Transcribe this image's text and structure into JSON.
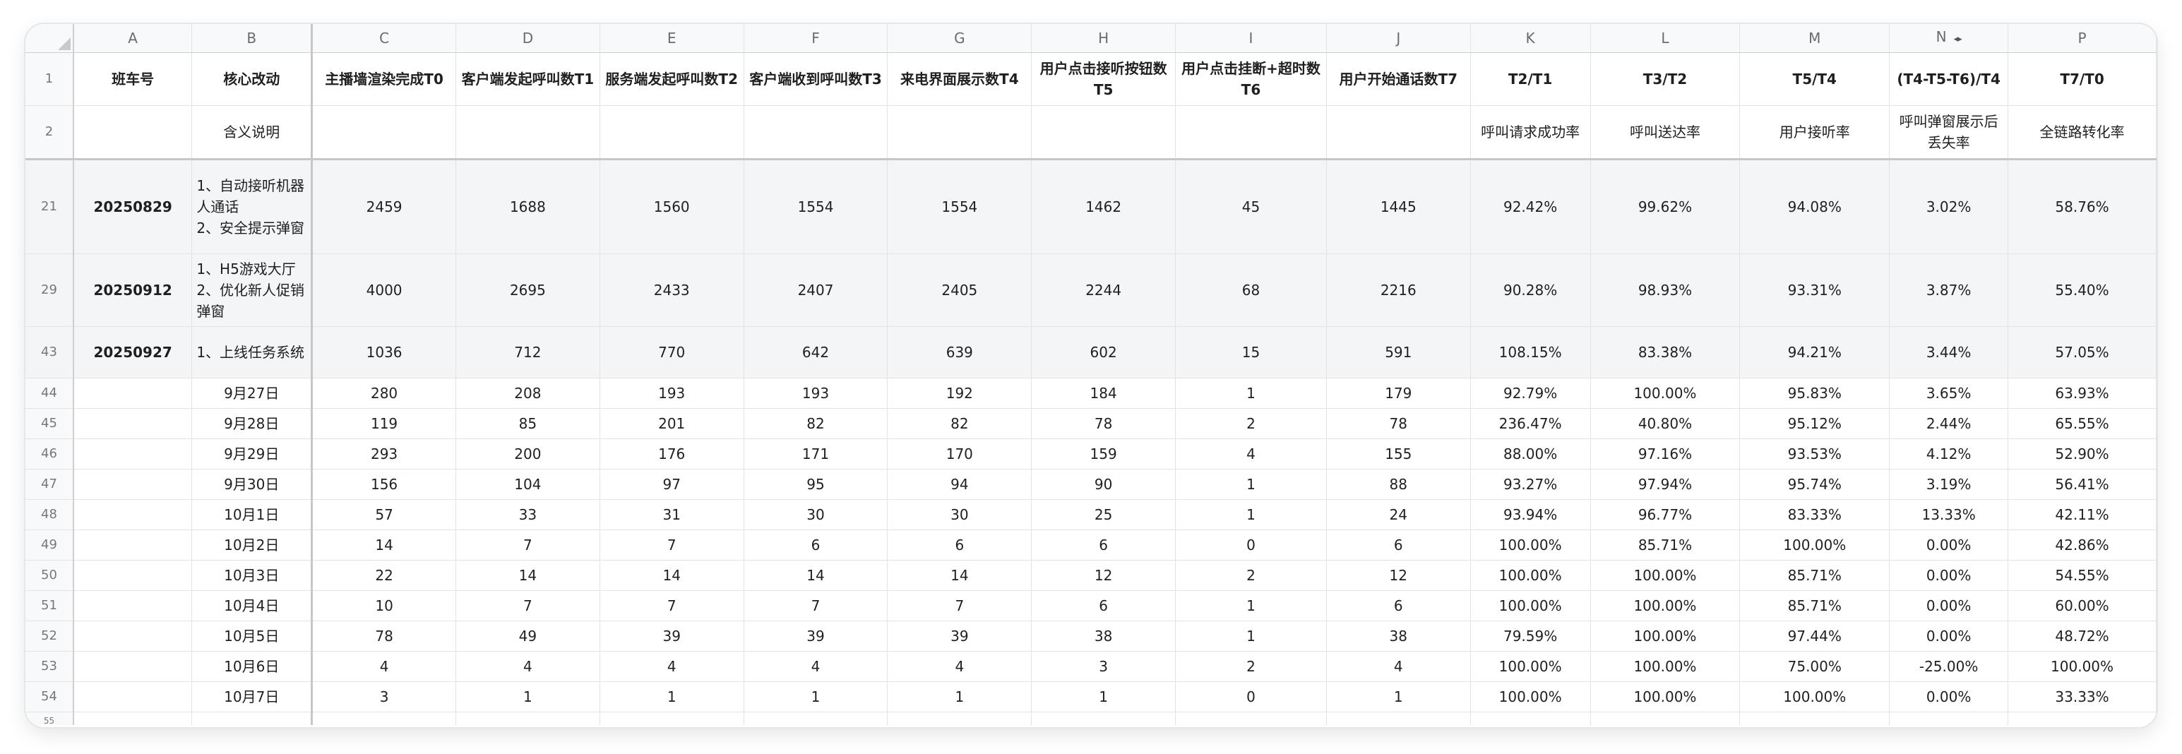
{
  "columns": [
    "A",
    "B",
    "C",
    "D",
    "E",
    "F",
    "G",
    "H",
    "I",
    "J",
    "K",
    "L",
    "M",
    "N",
    "P"
  ],
  "header_row": {
    "row_number": "1",
    "cells": [
      "班车号",
      "核心改动",
      "主播墙渲染完成T0",
      "客户端发起呼叫数T1",
      "服务端发起呼叫数T2",
      "客户端收到呼叫数T3",
      "来电界面展示数T4",
      "用户点击接听按钮数T5",
      "用户点击挂断+超时数T6",
      "用户开始通话数T7",
      "T2/T1",
      "T3/T2",
      "T5/T4",
      "(T4-T5-T6)/T4",
      "T7/T0"
    ]
  },
  "desc_row": {
    "row_number": "2",
    "cells": [
      "",
      "含义说明",
      "",
      "",
      "",
      "",
      "",
      "",
      "",
      "",
      "呼叫请求成功率",
      "呼叫送达率",
      "用户接听率",
      "呼叫弹窗展示后丢失率",
      "全链路转化率"
    ]
  },
  "rows": [
    {
      "row_number": "21",
      "cells": [
        "20250829",
        "1、自动接听机器人通话\n2、安全提示弹窗",
        "2459",
        "1688",
        "1560",
        "1554",
        "1554",
        "1462",
        "45",
        "1445",
        "92.42%",
        "99.62%",
        "94.08%",
        "3.02%",
        "58.76%"
      ]
    },
    {
      "row_number": "29",
      "cells": [
        "20250912",
        "1、H5游戏大厅\n2、优化新人促销弹窗",
        "4000",
        "2695",
        "2433",
        "2407",
        "2405",
        "2244",
        "68",
        "2216",
        "90.28%",
        "98.93%",
        "93.31%",
        "3.87%",
        "55.40%"
      ]
    },
    {
      "row_number": "43",
      "cells": [
        "20250927",
        "1、上线任务系统",
        "1036",
        "712",
        "770",
        "642",
        "639",
        "602",
        "15",
        "591",
        "108.15%",
        "83.38%",
        "94.21%",
        "3.44%",
        "57.05%"
      ]
    },
    {
      "row_number": "44",
      "cells": [
        "",
        "9月27日",
        "280",
        "208",
        "193",
        "193",
        "192",
        "184",
        "1",
        "179",
        "92.79%",
        "100.00%",
        "95.83%",
        "3.65%",
        "63.93%"
      ]
    },
    {
      "row_number": "45",
      "cells": [
        "",
        "9月28日",
        "119",
        "85",
        "201",
        "82",
        "82",
        "78",
        "2",
        "78",
        "236.47%",
        "40.80%",
        "95.12%",
        "2.44%",
        "65.55%"
      ]
    },
    {
      "row_number": "46",
      "cells": [
        "",
        "9月29日",
        "293",
        "200",
        "176",
        "171",
        "170",
        "159",
        "4",
        "155",
        "88.00%",
        "97.16%",
        "93.53%",
        "4.12%",
        "52.90%"
      ]
    },
    {
      "row_number": "47",
      "cells": [
        "",
        "9月30日",
        "156",
        "104",
        "97",
        "95",
        "94",
        "90",
        "1",
        "88",
        "93.27%",
        "97.94%",
        "95.74%",
        "3.19%",
        "56.41%"
      ]
    },
    {
      "row_number": "48",
      "cells": [
        "",
        "10月1日",
        "57",
        "33",
        "31",
        "30",
        "30",
        "25",
        "1",
        "24",
        "93.94%",
        "96.77%",
        "83.33%",
        "13.33%",
        "42.11%"
      ]
    },
    {
      "row_number": "49",
      "cells": [
        "",
        "10月2日",
        "14",
        "7",
        "7",
        "6",
        "6",
        "6",
        "0",
        "6",
        "100.00%",
        "85.71%",
        "100.00%",
        "0.00%",
        "42.86%"
      ]
    },
    {
      "row_number": "50",
      "cells": [
        "",
        "10月3日",
        "22",
        "14",
        "14",
        "14",
        "14",
        "12",
        "2",
        "12",
        "100.00%",
        "100.00%",
        "85.71%",
        "0.00%",
        "54.55%"
      ]
    },
    {
      "row_number": "51",
      "cells": [
        "",
        "10月4日",
        "10",
        "7",
        "7",
        "7",
        "7",
        "6",
        "1",
        "6",
        "100.00%",
        "100.00%",
        "85.71%",
        "0.00%",
        "60.00%"
      ]
    },
    {
      "row_number": "52",
      "cells": [
        "",
        "10月5日",
        "78",
        "49",
        "39",
        "39",
        "39",
        "38",
        "1",
        "38",
        "79.59%",
        "100.00%",
        "97.44%",
        "0.00%",
        "48.72%"
      ]
    },
    {
      "row_number": "53",
      "cells": [
        "",
        "10月6日",
        "4",
        "4",
        "4",
        "4",
        "4",
        "3",
        "2",
        "4",
        "100.00%",
        "100.00%",
        "75.00%",
        "-25.00%",
        "100.00%"
      ]
    },
    {
      "row_number": "54",
      "cells": [
        "",
        "10月7日",
        "3",
        "1",
        "1",
        "1",
        "1",
        "1",
        "0",
        "1",
        "100.00%",
        "100.00%",
        "100.00%",
        "0.00%",
        "33.33%"
      ]
    }
  ],
  "cut_row_number": "55",
  "hidden_column_arrows": "◂▸",
  "colors": {
    "header_bg": "#f8f9fa",
    "grid": "#e3e3e3",
    "shaded_row": "#f4f5f7",
    "cursor": "#2f6fe4"
  }
}
